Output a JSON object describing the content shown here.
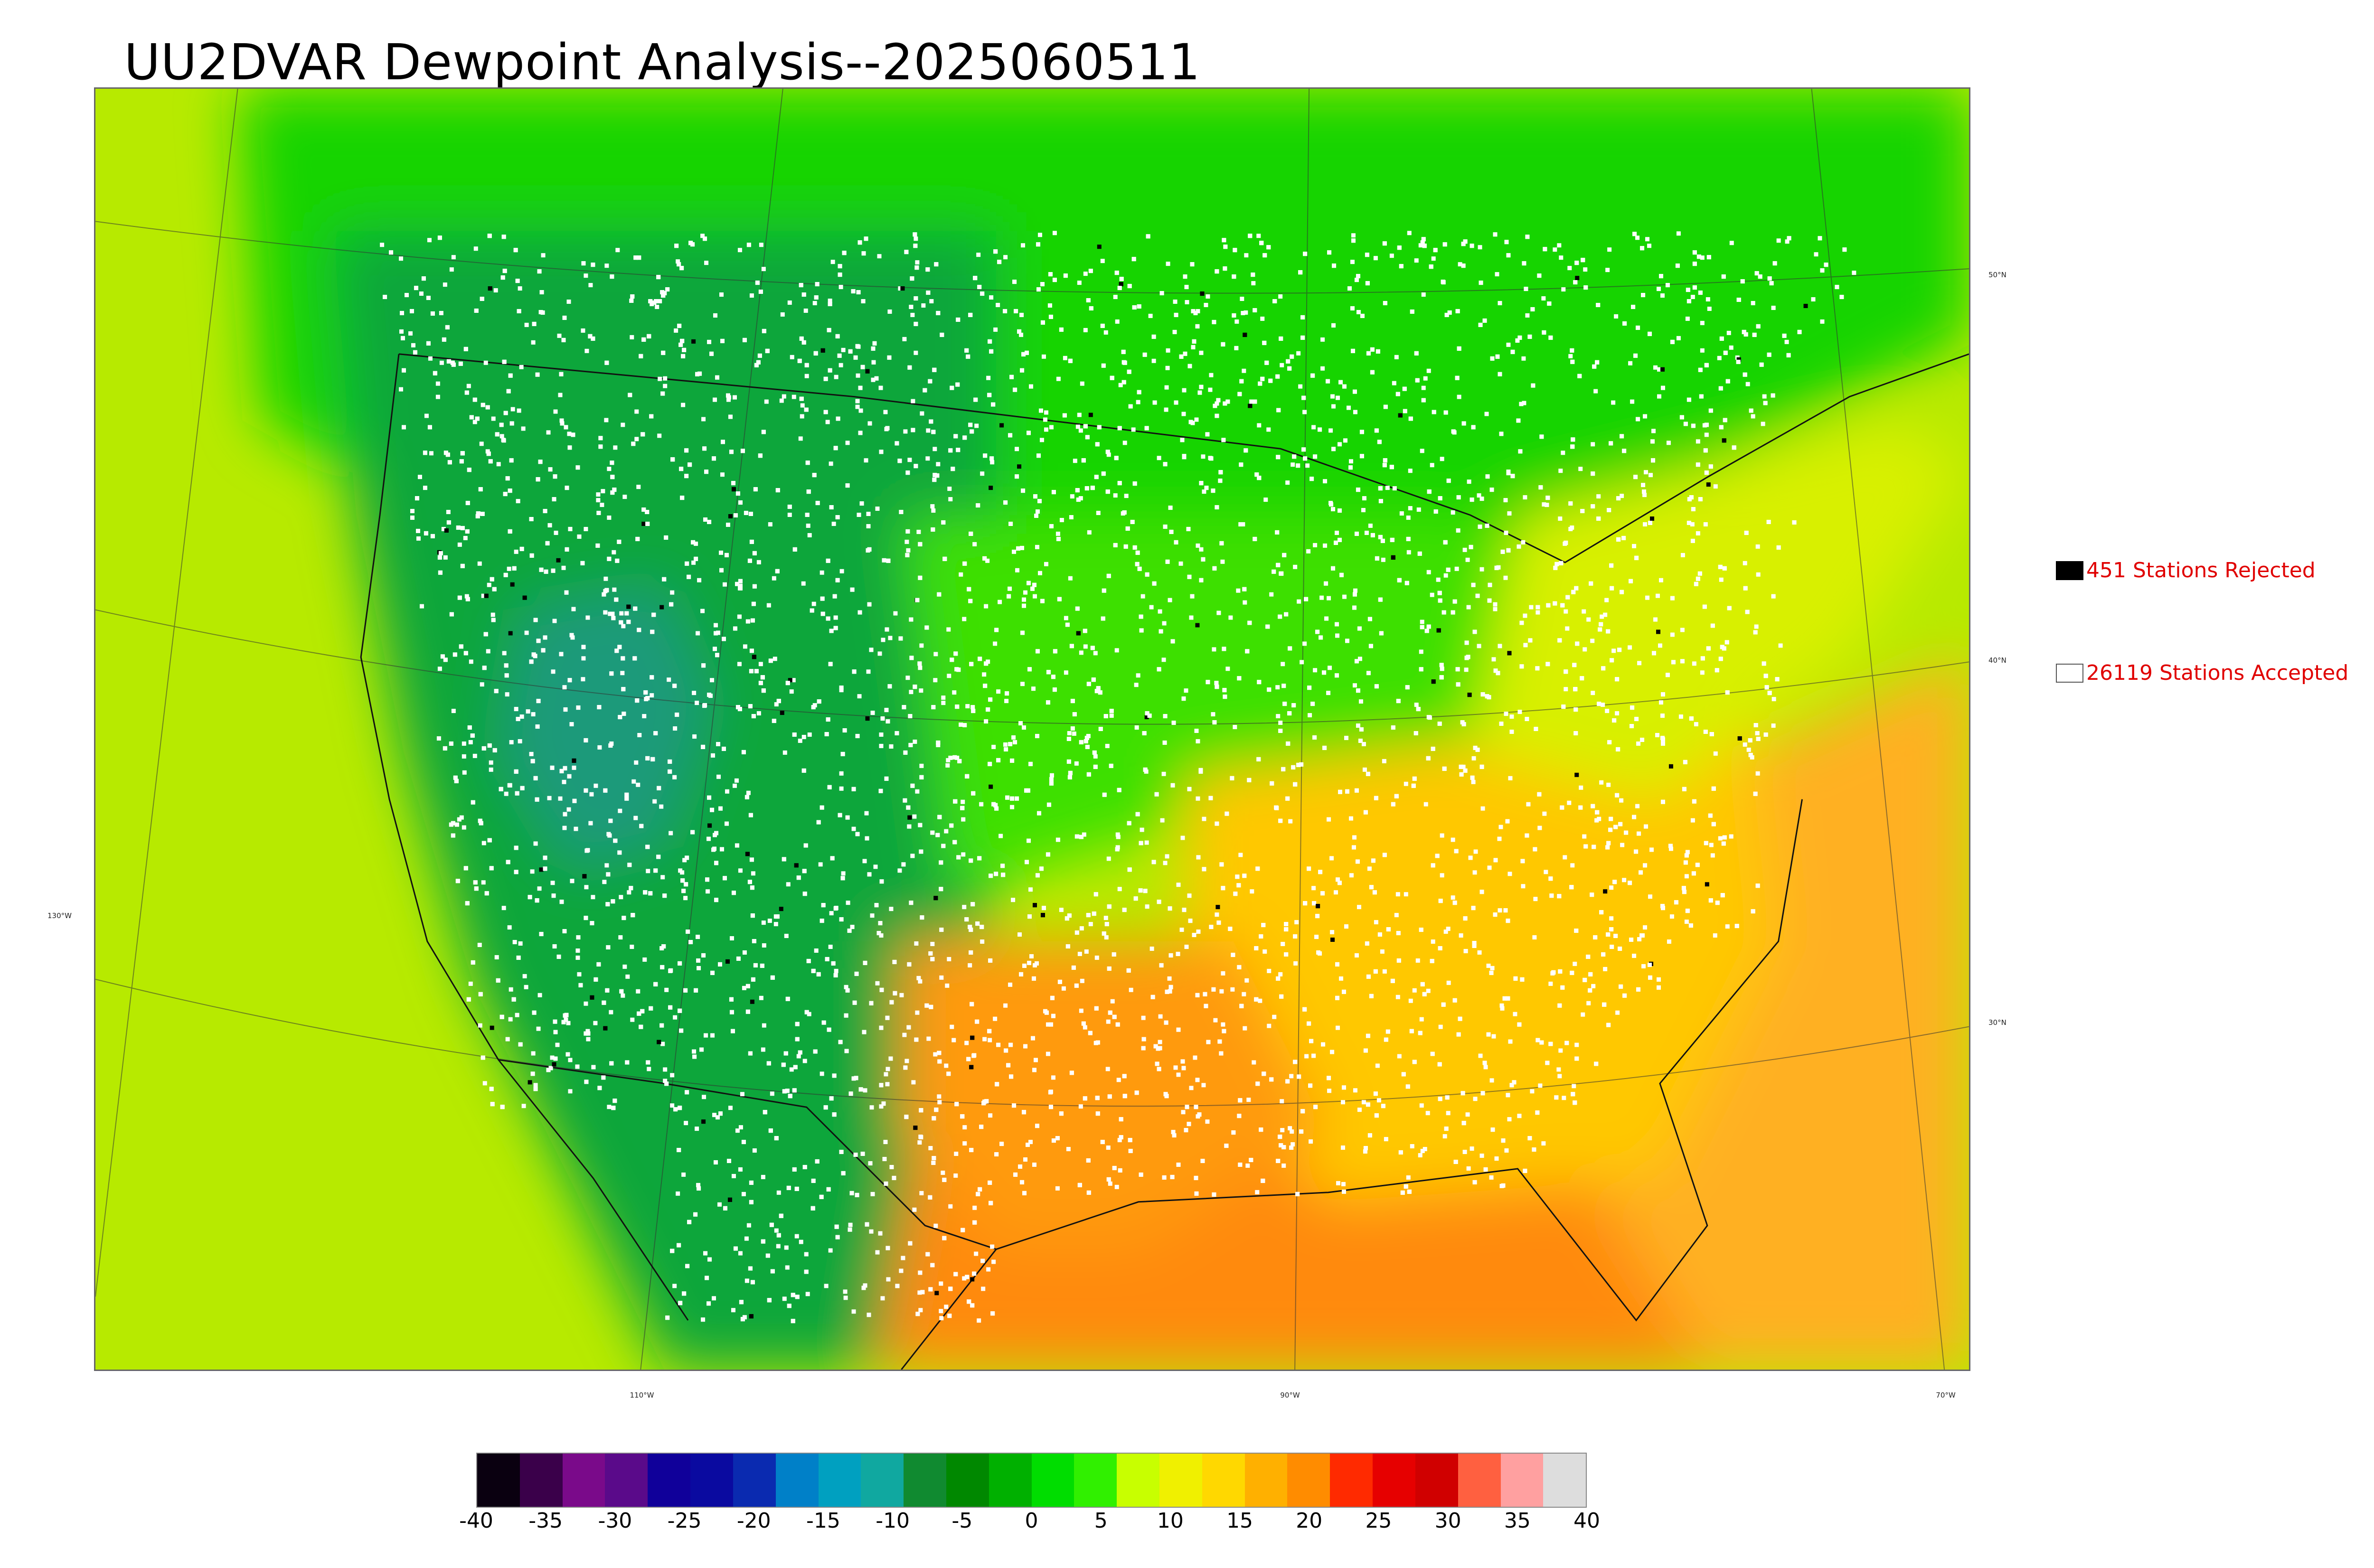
{
  "title": "UU2DVAR Dewpoint Analysis--2025060511",
  "legend": {
    "rejected": {
      "label": "451 Stations Rejected",
      "color": "#000000"
    },
    "accepted": {
      "label": "26119 Stations Accepted",
      "color": "#ffffff"
    },
    "text_color": "#e00000"
  },
  "lat_labels": {
    "n50": "50°N",
    "n40": "40°N",
    "n30": "30°N"
  },
  "lon_labels": {
    "w130": "130°W",
    "w110": "110°W",
    "w90": "90°W",
    "w70": "70°W"
  },
  "colorbar": {
    "min": -40,
    "max": 40,
    "ticks": [
      "-40",
      "-35",
      "-30",
      "-25",
      "-20",
      "-15",
      "-10",
      "-5",
      "0",
      "5",
      "10",
      "15",
      "20",
      "25",
      "30",
      "35",
      "40"
    ],
    "colors": [
      "#0a0010",
      "#3a004a",
      "#7a0a8a",
      "#5a0a8a",
      "#10009a",
      "#0a0aa0",
      "#0a2ab0",
      "#0080c8",
      "#00a0c0",
      "#10a8a0",
      "#108a30",
      "#008800",
      "#00b000",
      "#00dd00",
      "#30f000",
      "#c8ff00",
      "#f0f000",
      "#ffd800",
      "#ffb000",
      "#ff8c00",
      "#ff2a00",
      "#e60000",
      "#d00000",
      "#ff6040",
      "#ffa0a0",
      "#dddddd"
    ]
  },
  "field_colors": {
    "ocean_pacific": "#b7ea00",
    "ocean_gulf": "#ff8a10",
    "ocean_atlantic": "#ffb020",
    "canada": "#19d400",
    "west_dry": "#0ea63a",
    "great_basin": "#1a9a7a",
    "plains": "#3ce000",
    "southeast": "#ffc800",
    "texas": "#ff9a10",
    "northeast": "#d8f000"
  }
}
